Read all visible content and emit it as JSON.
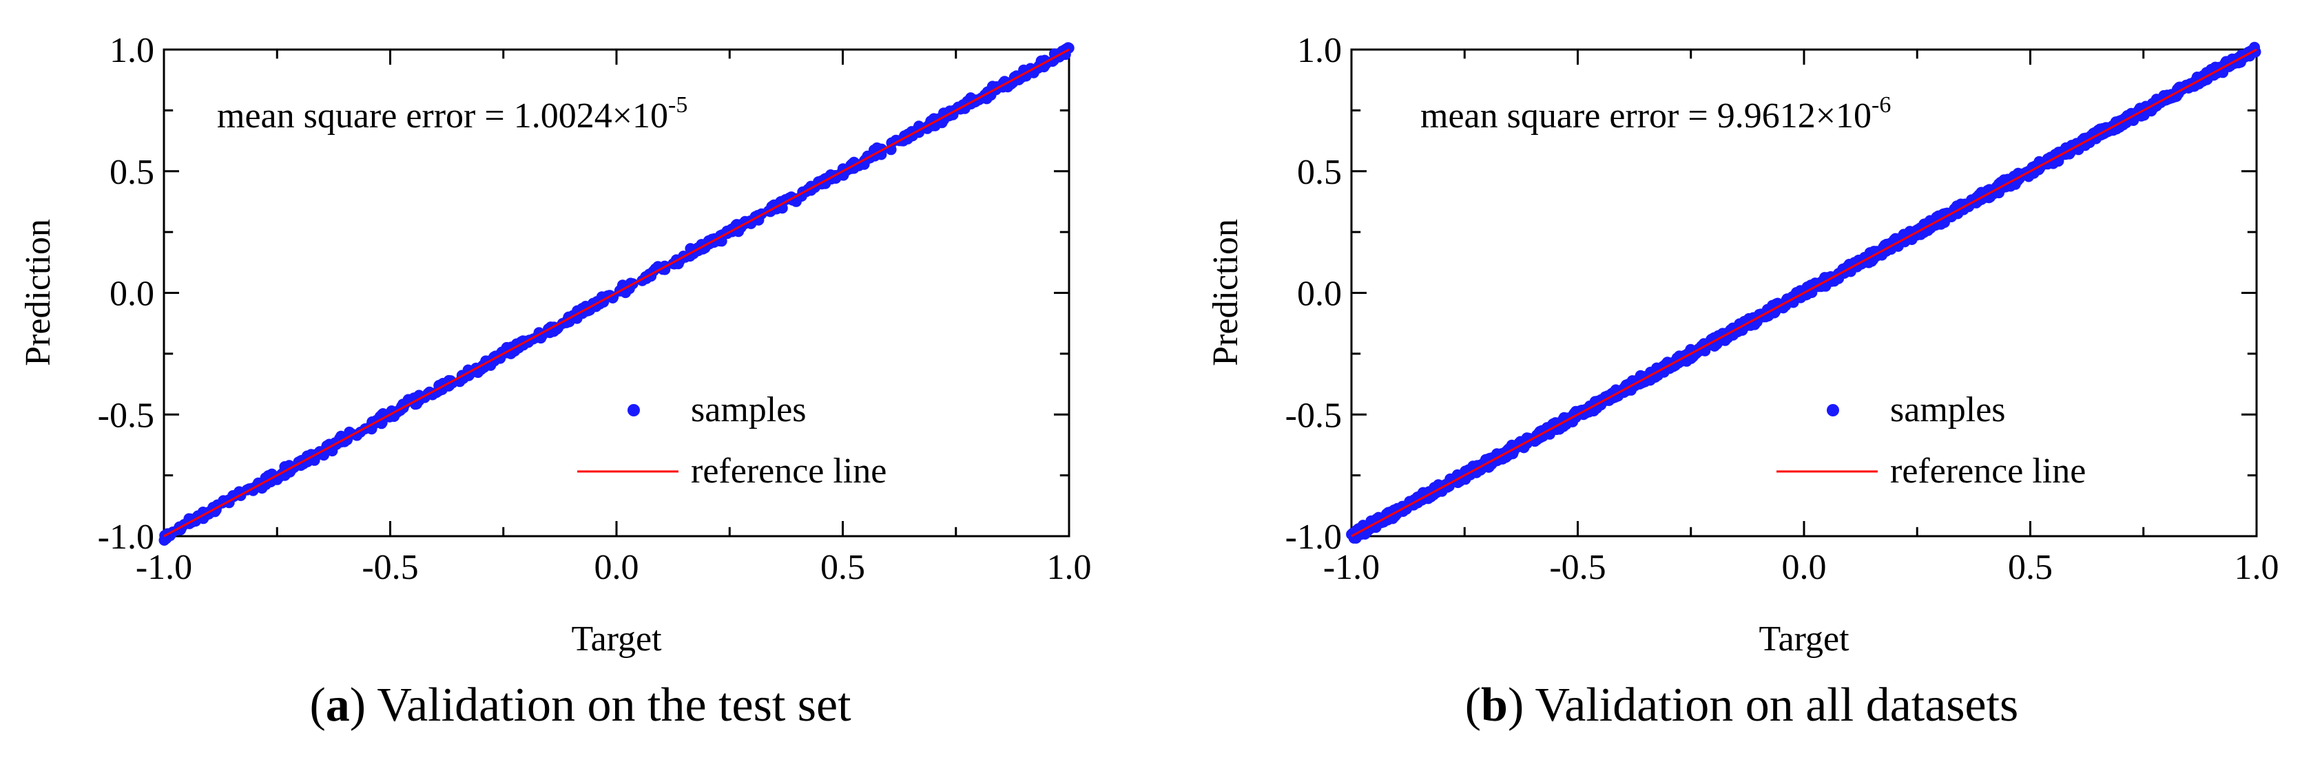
{
  "chart_data": [
    {
      "type": "scatter",
      "panel_id": "a",
      "xlabel": "Target",
      "ylabel": "Prediction",
      "xlim": [
        -1.0,
        1.0
      ],
      "ylim": [
        -1.0,
        1.0
      ],
      "xticks": [
        "-1.0",
        "-0.5",
        "0.0",
        "0.5",
        "1.0"
      ],
      "yticks": [
        "-1.0",
        "-0.5",
        "0.0",
        "0.5",
        "1.0"
      ],
      "annotation": {
        "prefix": "mean square error = ",
        "mantissa": "1.0024×10",
        "exponent": "-5"
      },
      "series": [
        {
          "name": "samples",
          "kind": "points",
          "color": "#1a1aff",
          "x_range": [
            -1.0,
            1.0
          ],
          "approx_relation": "prediction ≈ target",
          "count_estimate": 600
        },
        {
          "name": "reference line",
          "kind": "line",
          "color": "#ff0000",
          "x": [
            -1.0,
            1.0
          ],
          "y": [
            -1.0,
            1.0
          ]
        }
      ],
      "legend": {
        "position": "bottom-right",
        "entries": [
          "samples",
          "reference line"
        ]
      },
      "caption": {
        "label": "a",
        "text": "Validation on the test set"
      }
    },
    {
      "type": "scatter",
      "panel_id": "b",
      "xlabel": "Target",
      "ylabel": "Prediction",
      "xlim": [
        -1.0,
        1.0
      ],
      "ylim": [
        -1.0,
        1.0
      ],
      "xticks": [
        "-1.0",
        "-0.5",
        "0.0",
        "0.5",
        "1.0"
      ],
      "yticks": [
        "-1.0",
        "-0.5",
        "0.0",
        "0.5",
        "1.0"
      ],
      "annotation": {
        "prefix": "mean square error = ",
        "mantissa": "9.9612×10",
        "exponent": "-6"
      },
      "series": [
        {
          "name": "samples",
          "kind": "points",
          "color": "#1a1aff",
          "x_range": [
            -1.0,
            1.0
          ],
          "approx_relation": "prediction ≈ target",
          "count_estimate": 1500
        },
        {
          "name": "reference line",
          "kind": "line",
          "color": "#ff0000",
          "x": [
            -1.0,
            1.0
          ],
          "y": [
            -1.0,
            1.0
          ]
        }
      ],
      "legend": {
        "position": "bottom-right",
        "entries": [
          "samples",
          "reference line"
        ]
      },
      "caption": {
        "label": "b",
        "text": "Validation on all datasets"
      }
    }
  ]
}
